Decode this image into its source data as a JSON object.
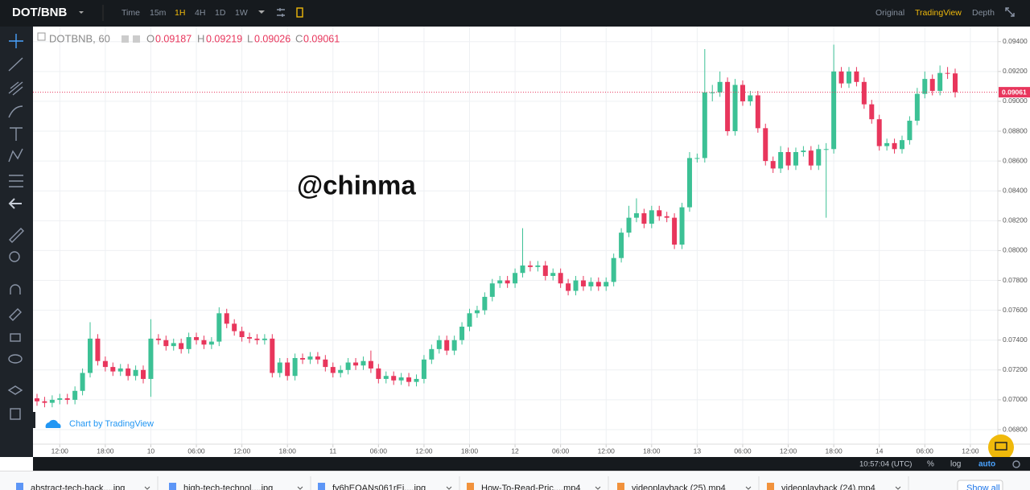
{
  "top_bar": {
    "symbol": "DOT/BNB",
    "intervals": [
      "Time",
      "15m",
      "1H",
      "4H",
      "1D",
      "1W"
    ],
    "views": [
      "Original",
      "TradingView",
      "Depth"
    ]
  },
  "header": {
    "labels": [
      "O",
      "H",
      "L",
      "C"
    ]
  },
  "watermark": "@chinma",
  "credit": "Chart by TradingView",
  "status": {
    "time": "10:57:04 (UTC)",
    "options": [
      "%",
      "log",
      "auto"
    ]
  },
  "downloads": {
    "items": [
      "abstract-tech-back....jpg",
      "high-tech-technol....jpg",
      "fy6hEOANs061rEi....jpg",
      "How-To-Read-Pric....mp4",
      "videoplayback (25).mp4",
      "videoplayback (24).mp4"
    ],
    "show_all": "Show all"
  },
  "chart_data": {
    "type": "candlestick",
    "title": "DOTBNB, 60",
    "up_color": "#3cc195",
    "down_color": "#e8365c",
    "grid": true,
    "xlim": [
      -0.53,
      126.62
    ],
    "ylim": [
      0.06703,
      0.09501
    ],
    "xticks": [
      {
        "value": 3,
        "label": "12:00"
      },
      {
        "value": 9,
        "label": "18:00"
      },
      {
        "value": 15,
        "label": "10"
      },
      {
        "value": 21,
        "label": "06:00"
      },
      {
        "value": 27,
        "label": "12:00"
      },
      {
        "value": 33,
        "label": "18:00"
      },
      {
        "value": 39,
        "label": "11"
      },
      {
        "value": 45,
        "label": "06:00"
      },
      {
        "value": 51,
        "label": "12:00"
      },
      {
        "value": 57,
        "label": "18:00"
      },
      {
        "value": 63,
        "label": "12"
      },
      {
        "value": 69,
        "label": "06:00"
      },
      {
        "value": 75,
        "label": "12:00"
      },
      {
        "value": 81,
        "label": "18:00"
      },
      {
        "value": 87,
        "label": "13"
      },
      {
        "value": 93,
        "label": "06:00"
      },
      {
        "value": 99,
        "label": "12:00"
      },
      {
        "value": 105,
        "label": "18:00"
      },
      {
        "value": 111,
        "label": "14"
      },
      {
        "value": 117,
        "label": "06:00"
      },
      {
        "value": 123,
        "label": "12:00"
      }
    ],
    "yticks": [
      {
        "value": 0.068,
        "label": "0.06800"
      },
      {
        "value": 0.07,
        "label": "0.07000"
      },
      {
        "value": 0.072,
        "label": "0.07200"
      },
      {
        "value": 0.074,
        "label": "0.07400"
      },
      {
        "value": 0.076,
        "label": "0.07600"
      },
      {
        "value": 0.078,
        "label": "0.07800"
      },
      {
        "value": 0.08,
        "label": "0.08000"
      },
      {
        "value": 0.082,
        "label": "0.08200"
      },
      {
        "value": 0.084,
        "label": "0.08400"
      },
      {
        "value": 0.086,
        "label": "0.08600"
      },
      {
        "value": 0.088,
        "label": "0.08800"
      },
      {
        "value": 0.09,
        "label": "0.09000"
      },
      {
        "value": 0.092,
        "label": "0.09200"
      },
      {
        "value": 0.094,
        "label": "0.09400"
      }
    ],
    "open": [
      0.0701,
      0.0699,
      0.0698,
      0.07,
      0.0701,
      0.07,
      0.0706,
      0.0718,
      0.0741,
      0.0726,
      0.0722,
      0.0719,
      0.0721,
      0.0716,
      0.072,
      0.0714,
      0.0741,
      0.074,
      0.0736,
      0.0738,
      0.0734,
      0.0742,
      0.074,
      0.0737,
      0.0739,
      0.0758,
      0.0751,
      0.0746,
      0.0742,
      0.0741,
      0.074,
      0.0741,
      0.0718,
      0.0725,
      0.0716,
      0.0728,
      0.0727,
      0.0729,
      0.0727,
      0.0722,
      0.0718,
      0.072,
      0.0725,
      0.0723,
      0.0726,
      0.0721,
      0.0714,
      0.0716,
      0.0713,
      0.0715,
      0.0712,
      0.0714,
      0.0727,
      0.0734,
      0.074,
      0.0733,
      0.074,
      0.0749,
      0.0758,
      0.076,
      0.0769,
      0.0778,
      0.078,
      0.0778,
      0.0785,
      0.079,
      0.0789,
      0.079,
      0.0783,
      0.0785,
      0.0778,
      0.0773,
      0.078,
      0.0776,
      0.0779,
      0.0776,
      0.0779,
      0.0795,
      0.0812,
      0.0822,
      0.0825,
      0.0818,
      0.0827,
      0.0823,
      0.0822,
      0.0804,
      0.0829,
      0.0862,
      0.0862,
      0.0906,
      0.0906,
      0.0913,
      0.088,
      0.0911,
      0.09,
      0.0904,
      0.0882,
      0.086,
      0.0855,
      0.0866,
      0.0857,
      0.0866,
      0.0867,
      0.0857,
      0.0868,
      0.0868,
      0.092,
      0.0912,
      0.092,
      0.0913,
      0.0898,
      0.0888,
      0.087,
      0.0872,
      0.0868,
      0.0874,
      0.0887,
      0.0905,
      0.0915,
      0.0907,
      0.0919,
      0.09187
    ],
    "high": [
      0.0704,
      0.0702,
      0.0703,
      0.0704,
      0.0704,
      0.0709,
      0.0721,
      0.0752,
      0.0744,
      0.0729,
      0.0725,
      0.0724,
      0.0724,
      0.0723,
      0.0723,
      0.0754,
      0.0744,
      0.0743,
      0.0741,
      0.0741,
      0.0745,
      0.0745,
      0.0743,
      0.0742,
      0.0762,
      0.0761,
      0.0754,
      0.0749,
      0.0745,
      0.0744,
      0.0744,
      0.0744,
      0.0728,
      0.0728,
      0.0731,
      0.0731,
      0.0732,
      0.0732,
      0.073,
      0.0725,
      0.0723,
      0.0728,
      0.0728,
      0.0729,
      0.0733,
      0.0724,
      0.0719,
      0.0719,
      0.0718,
      0.0718,
      0.0717,
      0.073,
      0.0737,
      0.0743,
      0.0743,
      0.0743,
      0.0752,
      0.0761,
      0.0763,
      0.0772,
      0.0781,
      0.0783,
      0.0783,
      0.0788,
      0.0815,
      0.0793,
      0.0793,
      0.0793,
      0.0788,
      0.0788,
      0.0781,
      0.0783,
      0.0783,
      0.0782,
      0.0782,
      0.0782,
      0.0798,
      0.0815,
      0.083,
      0.0835,
      0.0828,
      0.083,
      0.083,
      0.0826,
      0.0825,
      0.0832,
      0.0866,
      0.0865,
      0.0935,
      0.0911,
      0.092,
      0.0916,
      0.0915,
      0.0914,
      0.0907,
      0.0907,
      0.0885,
      0.0863,
      0.087,
      0.0869,
      0.0869,
      0.087,
      0.087,
      0.0871,
      0.0872,
      0.0938,
      0.0923,
      0.0923,
      0.0923,
      0.0916,
      0.0901,
      0.0891,
      0.0875,
      0.0875,
      0.0877,
      0.089,
      0.0909,
      0.092,
      0.0918,
      0.0924,
      0.0923,
      0.09219
    ],
    "low": [
      0.0696,
      0.0695,
      0.0695,
      0.0697,
      0.0697,
      0.0697,
      0.0703,
      0.0715,
      0.0723,
      0.0719,
      0.0716,
      0.0716,
      0.0713,
      0.0713,
      0.0711,
      0.0702,
      0.0737,
      0.0733,
      0.0733,
      0.0731,
      0.0731,
      0.0737,
      0.0734,
      0.0734,
      0.0736,
      0.0748,
      0.0743,
      0.0739,
      0.0738,
      0.0737,
      0.0737,
      0.0715,
      0.0715,
      0.0713,
      0.0713,
      0.0724,
      0.0724,
      0.0724,
      0.0719,
      0.0715,
      0.0715,
      0.0717,
      0.072,
      0.072,
      0.0718,
      0.0711,
      0.0711,
      0.071,
      0.071,
      0.0709,
      0.0709,
      0.0711,
      0.0724,
      0.0731,
      0.073,
      0.073,
      0.0737,
      0.0746,
      0.0755,
      0.0757,
      0.0766,
      0.0775,
      0.0775,
      0.0775,
      0.0782,
      0.0786,
      0.0786,
      0.078,
      0.078,
      0.0775,
      0.077,
      0.077,
      0.0773,
      0.0773,
      0.0773,
      0.0773,
      0.0776,
      0.0792,
      0.0809,
      0.0819,
      0.0815,
      0.0815,
      0.082,
      0.0819,
      0.0801,
      0.0801,
      0.0826,
      0.0859,
      0.0859,
      0.09,
      0.0903,
      0.0877,
      0.0877,
      0.0897,
      0.0897,
      0.0879,
      0.0857,
      0.0852,
      0.0852,
      0.0854,
      0.0854,
      0.0863,
      0.0854,
      0.0854,
      0.0822,
      0.0865,
      0.0909,
      0.0909,
      0.091,
      0.0895,
      0.0885,
      0.0867,
      0.0867,
      0.0865,
      0.0865,
      0.0871,
      0.0884,
      0.0902,
      0.0904,
      0.0904,
      0.0915,
      0.09026
    ],
    "close": [
      0.0699,
      0.0698,
      0.07,
      0.0701,
      0.07,
      0.0706,
      0.0718,
      0.0741,
      0.0726,
      0.0722,
      0.0719,
      0.0721,
      0.0716,
      0.072,
      0.0714,
      0.0741,
      0.074,
      0.0736,
      0.0738,
      0.0734,
      0.0742,
      0.074,
      0.0737,
      0.0739,
      0.0758,
      0.0751,
      0.0746,
      0.0742,
      0.0741,
      0.074,
      0.0741,
      0.0718,
      0.0725,
      0.0716,
      0.0728,
      0.0727,
      0.0729,
      0.0727,
      0.0722,
      0.0718,
      0.072,
      0.0725,
      0.0723,
      0.0726,
      0.0721,
      0.0714,
      0.0716,
      0.0713,
      0.0715,
      0.0712,
      0.0714,
      0.0727,
      0.0734,
      0.074,
      0.0733,
      0.074,
      0.0749,
      0.0758,
      0.076,
      0.0769,
      0.0778,
      0.078,
      0.0778,
      0.0785,
      0.079,
      0.0789,
      0.079,
      0.0783,
      0.0785,
      0.0778,
      0.0773,
      0.078,
      0.0776,
      0.0779,
      0.0776,
      0.0779,
      0.0795,
      0.0812,
      0.0822,
      0.0825,
      0.0818,
      0.0827,
      0.0823,
      0.0822,
      0.0804,
      0.0829,
      0.0862,
      0.0862,
      0.0906,
      0.0906,
      0.0913,
      0.088,
      0.0911,
      0.09,
      0.0904,
      0.0882,
      0.086,
      0.0855,
      0.0866,
      0.0857,
      0.0866,
      0.0867,
      0.0857,
      0.0868,
      0.0868,
      0.092,
      0.0912,
      0.092,
      0.0913,
      0.0898,
      0.0888,
      0.087,
      0.0872,
      0.0868,
      0.0874,
      0.0887,
      0.0905,
      0.0915,
      0.0907,
      0.0919,
      0.09187,
      0.09061
    ]
  }
}
